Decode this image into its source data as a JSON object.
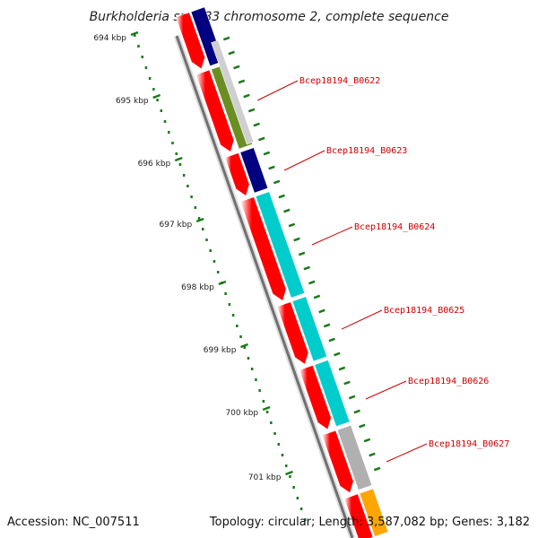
{
  "title": "Burkholderia sp. 383 chromosome 2, complete sequence",
  "footer": {
    "accession": "Accession: NC_007511",
    "summary": "Topology: circular; Length: 3,587,082 bp; Genes: 3,182"
  },
  "ruler": {
    "unit": "kbp",
    "ticks": [
      "694 kbp",
      "695 kbp",
      "696 kbp",
      "697 kbp",
      "698 kbp",
      "699 kbp",
      "700 kbp",
      "701 kbp"
    ]
  },
  "genes": [
    {
      "id": "Bcep18194_B0622"
    },
    {
      "id": "Bcep18194_B0623"
    },
    {
      "id": "Bcep18194_B0624"
    },
    {
      "id": "Bcep18194_B0625"
    },
    {
      "id": "Bcep18194_B0626"
    },
    {
      "id": "Bcep18194_B0627"
    }
  ],
  "colors": {
    "cds": "#ff0000",
    "backbone": "#808080",
    "tick": "#1a7a1a",
    "label": "#cc0000",
    "navy": "#000080",
    "olive": "#6b8e23",
    "cyan": "#00cccc",
    "gray": "#b0b0b0",
    "orange": "#ffa500"
  }
}
